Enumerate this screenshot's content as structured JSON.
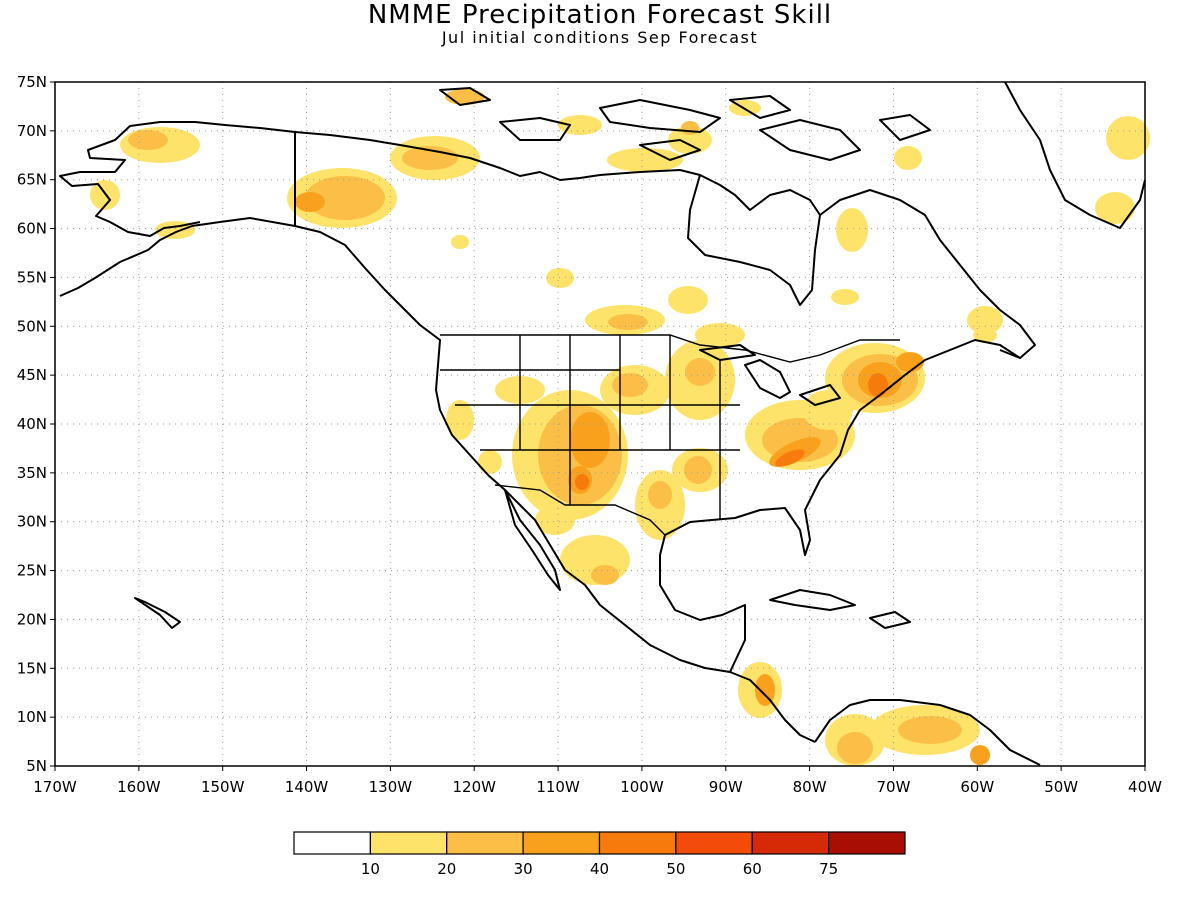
{
  "title": "NMME Precipitation Forecast Skill",
  "subtitle": "Jul initial conditions  Sep Forecast",
  "map": {
    "projection": "equirectangular",
    "lon_range": [
      -170,
      -40
    ],
    "lat_range": [
      5,
      75
    ],
    "gridlines": "dotted",
    "lat_ticks": [
      "5N",
      "10N",
      "15N",
      "20N",
      "25N",
      "30N",
      "35N",
      "40N",
      "45N",
      "50N",
      "55N",
      "60N",
      "65N",
      "70N",
      "75N"
    ],
    "lon_ticks": [
      "170W",
      "160W",
      "150W",
      "140W",
      "130W",
      "120W",
      "110W",
      "100W",
      "90W",
      "80W",
      "70W",
      "60W",
      "50W",
      "40W"
    ]
  },
  "legend": {
    "labels": [
      "10",
      "20",
      "30",
      "40",
      "50",
      "60",
      "75"
    ],
    "colors": [
      "#ffffff",
      "#fde36a",
      "#fbbf48",
      "#f9a11c",
      "#f77a0c",
      "#f24b0a",
      "#d62a06",
      "#a80f02"
    ]
  }
}
